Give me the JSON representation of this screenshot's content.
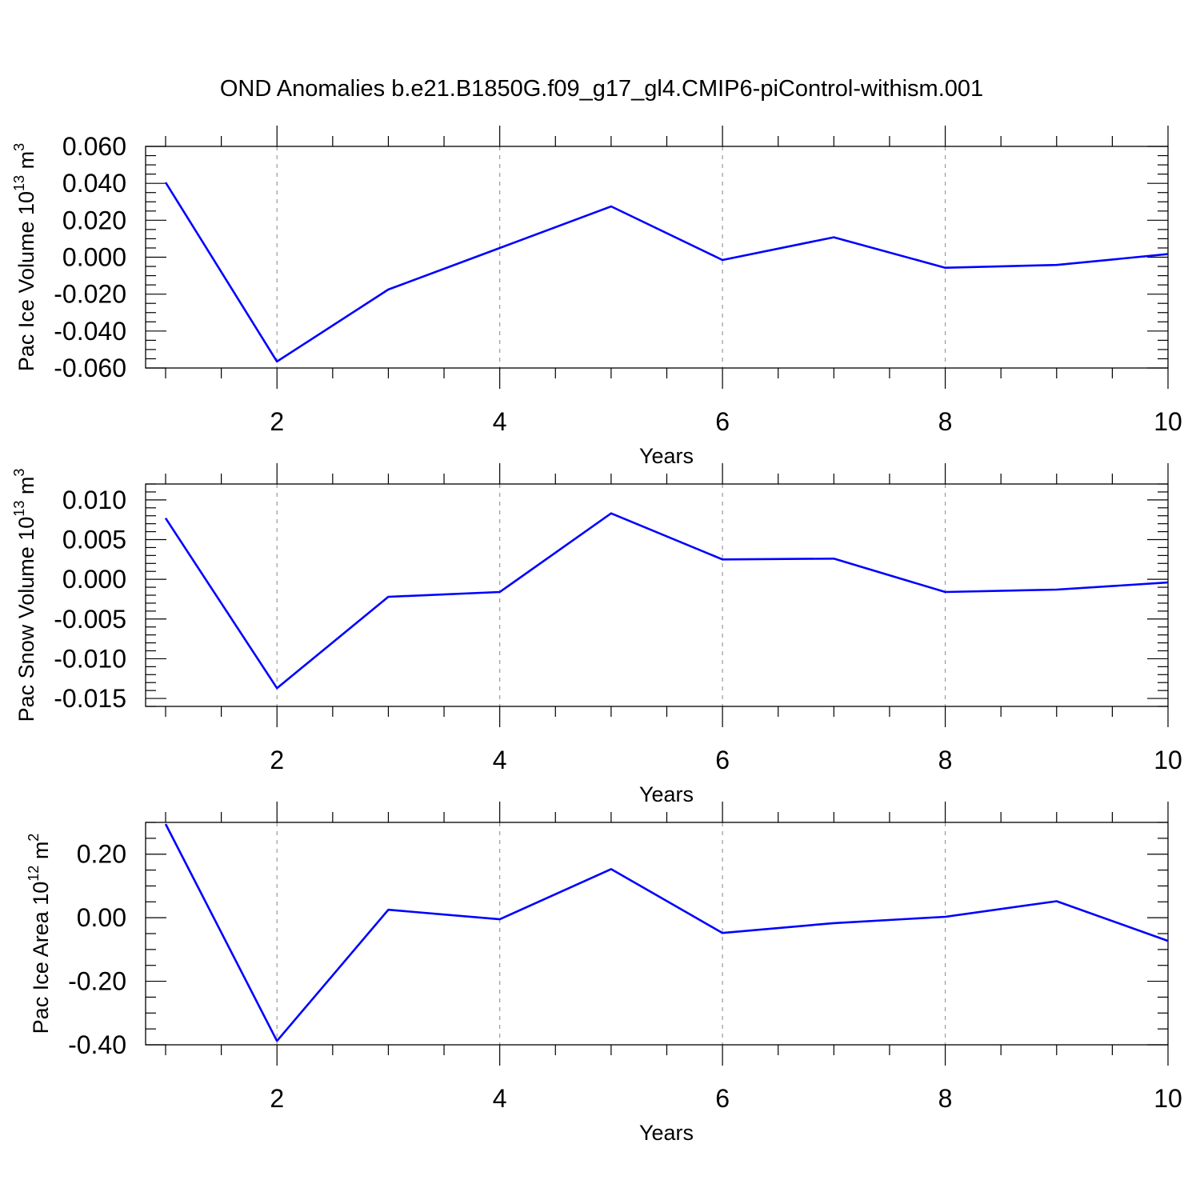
{
  "figure": {
    "title": "OND Anomalies b.e21.B1850G.f09_g17_gl4.CMIP6-piControl-withism.001"
  },
  "colors": {
    "line": "#0000ff",
    "grid": "#9a9a9a",
    "axes": "#000000"
  },
  "chart_data": [
    {
      "type": "line",
      "xlabel": "Years",
      "ylabel": "Pac Ice Volume 10",
      "ylabel_exp": "13",
      "ylabel_unit": " m",
      "ylabel_unit_exp": "3",
      "xlim": [
        1,
        10
      ],
      "ylim": [
        -0.06,
        0.06
      ],
      "x_ticks": [
        2,
        4,
        6,
        8,
        10
      ],
      "x_tick_labels": [
        "2",
        "4",
        "6",
        "8",
        "10"
      ],
      "y_ticks": [
        -0.06,
        -0.04,
        -0.02,
        0.0,
        0.02,
        0.04,
        0.06
      ],
      "y_tick_labels": [
        "-0.060",
        "-0.040",
        "-0.020",
        "0.000",
        "0.020",
        "0.040",
        "0.060"
      ],
      "y_minor_step": 0.005,
      "x_minor_step": 0.5,
      "grid": "x-dashed",
      "x": [
        1,
        2,
        3,
        4,
        5,
        6,
        7,
        8,
        9,
        10
      ],
      "values": [
        0.0405,
        -0.0565,
        -0.0175,
        0.005,
        0.0275,
        -0.0015,
        0.0108,
        -0.0057,
        -0.0042,
        0.0017
      ]
    },
    {
      "type": "line",
      "xlabel": "Years",
      "ylabel": "Pac Snow Volume 10",
      "ylabel_exp": "13",
      "ylabel_unit": " m",
      "ylabel_unit_exp": "3",
      "xlim": [
        1,
        10
      ],
      "ylim": [
        -0.016,
        0.012
      ],
      "x_ticks": [
        2,
        4,
        6,
        8,
        10
      ],
      "x_tick_labels": [
        "2",
        "4",
        "6",
        "8",
        "10"
      ],
      "y_ticks": [
        -0.015,
        -0.01,
        -0.005,
        0.0,
        0.005,
        0.01
      ],
      "y_tick_labels": [
        "-0.015",
        "-0.010",
        "-0.005",
        "0.000",
        "0.005",
        "0.010"
      ],
      "y_minor_step": 0.001,
      "x_minor_step": 0.5,
      "grid": "x-dashed",
      "x": [
        1,
        2,
        3,
        4,
        5,
        6,
        7,
        8,
        9,
        10
      ],
      "values": [
        0.0077,
        -0.0137,
        -0.0022,
        -0.0016,
        0.0083,
        0.0025,
        0.0026,
        -0.0016,
        -0.0013,
        -0.0004
      ]
    },
    {
      "type": "line",
      "xlabel": "Years",
      "ylabel": "Pac Ice Area 10",
      "ylabel_exp": "12",
      "ylabel_unit": " m",
      "ylabel_unit_exp": "2",
      "xlim": [
        1,
        10
      ],
      "ylim": [
        -0.4,
        0.3
      ],
      "x_ticks": [
        2,
        4,
        6,
        8,
        10
      ],
      "x_tick_labels": [
        "2",
        "4",
        "6",
        "8",
        "10"
      ],
      "y_ticks": [
        -0.4,
        -0.2,
        0.0,
        0.2
      ],
      "y_tick_labels": [
        "-0.40",
        "-0.20",
        "0.00",
        "0.20"
      ],
      "y_minor_step": 0.05,
      "x_minor_step": 0.5,
      "grid": "x-dashed",
      "x": [
        1,
        2,
        3,
        4,
        5,
        6,
        7,
        8,
        9,
        10
      ],
      "values": [
        0.295,
        -0.388,
        0.025,
        -0.005,
        0.153,
        -0.048,
        -0.017,
        0.003,
        0.052,
        -0.073
      ]
    }
  ]
}
